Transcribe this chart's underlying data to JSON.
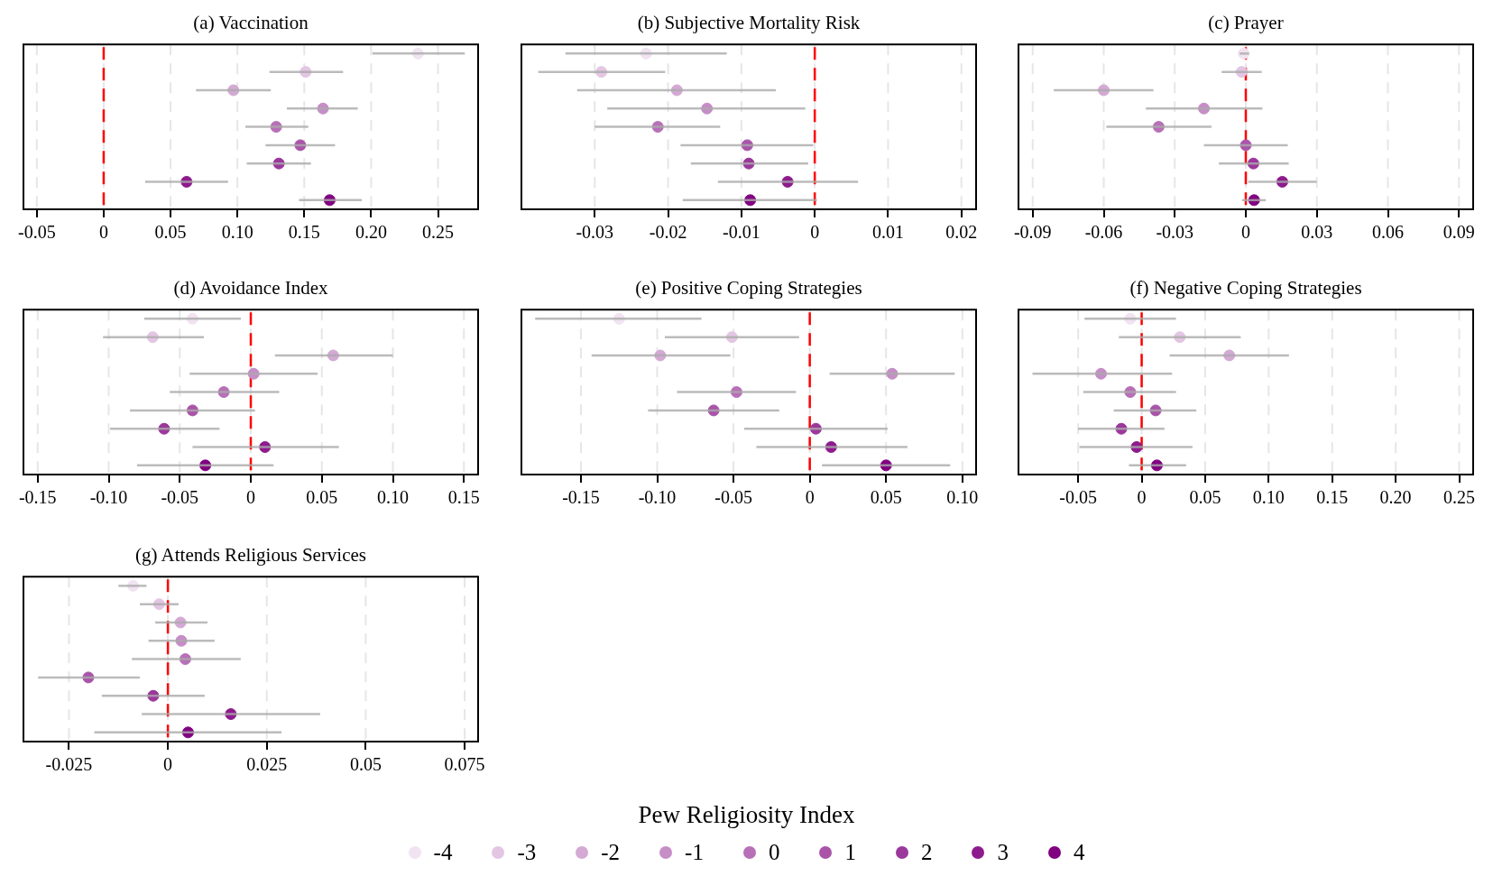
{
  "chart_data": [
    {
      "type": "scatter",
      "title": "(a) Vaccination",
      "orientation": "horizontal",
      "categories": [
        null,
        null,
        null,
        null,
        null,
        null,
        null,
        null,
        null
      ],
      "xlim": [
        -0.06,
        0.28
      ],
      "xticks": [
        -0.05,
        0,
        0.05,
        {
          "value": 0.1,
          "label": "0.10"
        },
        0.15,
        {
          "value": 0.2,
          "label": "0.20"
        },
        0.25
      ],
      "grid": "x",
      "tick_labels": "x",
      "marker": "circle",
      "ref_lines": [
        {
          "axis": "x",
          "value": 0,
          "color": "#ff0000",
          "line_style": "dashed"
        }
      ],
      "series": [
        {
          "color": "#f1e3f1",
          "values": [
            0.235,
            null,
            null,
            null,
            null,
            null,
            null,
            null,
            null
          ],
          "errors": [
            [
              0.201,
              0.27
            ],
            null,
            null,
            null,
            null,
            null,
            null,
            null,
            null
          ]
        },
        {
          "color": "#e3c6e3",
          "values": [
            null,
            0.151,
            null,
            null,
            null,
            null,
            null,
            null,
            null
          ],
          "errors": [
            null,
            [
              0.124,
              0.179
            ],
            null,
            null,
            null,
            null,
            null,
            null,
            null
          ]
        },
        {
          "color": "#d4a9d4",
          "values": [
            null,
            null,
            0.097,
            null,
            null,
            null,
            null,
            null,
            null
          ],
          "errors": [
            null,
            null,
            [
              0.069,
              0.125
            ],
            null,
            null,
            null,
            null,
            null,
            null
          ]
        },
        {
          "color": "#c68dc6",
          "values": [
            null,
            null,
            null,
            0.164,
            null,
            null,
            null,
            null,
            null
          ],
          "errors": [
            null,
            null,
            null,
            [
              0.137,
              0.19
            ],
            null,
            null,
            null,
            null,
            null
          ]
        },
        {
          "color": "#b770b7",
          "values": [
            null,
            null,
            null,
            null,
            0.129,
            null,
            null,
            null,
            null
          ],
          "errors": [
            null,
            null,
            null,
            null,
            [
              0.106,
              0.153
            ],
            null,
            null,
            null,
            null
          ]
        },
        {
          "color": "#a954a9",
          "values": [
            null,
            null,
            null,
            null,
            null,
            0.147,
            null,
            null,
            null
          ],
          "errors": [
            null,
            null,
            null,
            null,
            null,
            [
              0.121,
              0.173
            ],
            null,
            null,
            null
          ]
        },
        {
          "color": "#9b389b",
          "values": [
            null,
            null,
            null,
            null,
            null,
            null,
            0.131,
            null,
            null
          ],
          "errors": [
            null,
            null,
            null,
            null,
            null,
            null,
            [
              0.107,
              0.155
            ],
            null,
            null
          ]
        },
        {
          "color": "#8d1b8d",
          "values": [
            null,
            null,
            null,
            null,
            null,
            null,
            null,
            0.062,
            null
          ],
          "errors": [
            null,
            null,
            null,
            null,
            null,
            null,
            null,
            [
              0.031,
              0.093
            ],
            null
          ]
        },
        {
          "color": "#800080",
          "values": [
            null,
            null,
            null,
            null,
            null,
            null,
            null,
            null,
            0.169
          ],
          "errors": [
            null,
            null,
            null,
            null,
            null,
            null,
            null,
            null,
            [
              0.146,
              0.193
            ]
          ]
        }
      ]
    },
    {
      "type": "scatter",
      "title": "(b) Subjective Mortality Risk",
      "orientation": "horizontal",
      "categories": [
        null,
        null,
        null,
        null,
        null,
        null,
        null,
        null,
        null
      ],
      "xlim": [
        -0.04,
        0.022
      ],
      "xticks": [
        -0.03,
        -0.02,
        -0.01,
        0,
        0.01,
        0.02
      ],
      "grid": "x",
      "tick_labels": "x",
      "marker": "circle",
      "ref_lines": [
        {
          "axis": "x",
          "value": 0,
          "color": "#ff0000",
          "line_style": "dashed"
        }
      ],
      "series": [
        {
          "color": "#f1e3f1",
          "values": [
            -0.023,
            null,
            null,
            null,
            null,
            null,
            null,
            null,
            null
          ],
          "errors": [
            [
              -0.034,
              -0.012
            ],
            null,
            null,
            null,
            null,
            null,
            null,
            null,
            null
          ]
        },
        {
          "color": "#e3c6e3",
          "values": [
            null,
            -0.0291,
            null,
            null,
            null,
            null,
            null,
            null,
            null
          ],
          "errors": [
            null,
            [
              -0.0377,
              -0.0204
            ],
            null,
            null,
            null,
            null,
            null,
            null,
            null
          ]
        },
        {
          "color": "#d4a9d4",
          "values": [
            null,
            null,
            -0.0188,
            null,
            null,
            null,
            null,
            null,
            null
          ],
          "errors": [
            null,
            null,
            [
              -0.0324,
              -0.0053
            ],
            null,
            null,
            null,
            null,
            null,
            null
          ]
        },
        {
          "color": "#c68dc6",
          "values": [
            null,
            null,
            null,
            -0.0147,
            null,
            null,
            null,
            null,
            null
          ],
          "errors": [
            null,
            null,
            null,
            [
              -0.0283,
              -0.0013
            ],
            null,
            null,
            null,
            null,
            null
          ]
        },
        {
          "color": "#b770b7",
          "values": [
            null,
            null,
            null,
            null,
            -0.0214,
            null,
            null,
            null,
            null
          ],
          "errors": [
            null,
            null,
            null,
            null,
            [
              -0.03,
              -0.0129
            ],
            null,
            null,
            null,
            null
          ]
        },
        {
          "color": "#a954a9",
          "values": [
            null,
            null,
            null,
            null,
            null,
            -0.0092,
            null,
            null,
            null
          ],
          "errors": [
            null,
            null,
            null,
            null,
            null,
            [
              -0.0183,
              -0.0002
            ],
            null,
            null,
            null
          ]
        },
        {
          "color": "#9b389b",
          "values": [
            null,
            null,
            null,
            null,
            null,
            null,
            -0.009,
            null,
            null
          ],
          "errors": [
            null,
            null,
            null,
            null,
            null,
            null,
            [
              -0.0169,
              -0.0009
            ],
            null,
            null
          ]
        },
        {
          "color": "#8d1b8d",
          "values": [
            null,
            null,
            null,
            null,
            null,
            null,
            null,
            -0.0037,
            null
          ],
          "errors": [
            null,
            null,
            null,
            null,
            null,
            null,
            null,
            [
              -0.0132,
              0.0059
            ],
            null
          ]
        },
        {
          "color": "#800080",
          "values": [
            null,
            null,
            null,
            null,
            null,
            null,
            null,
            null,
            -0.0088
          ],
          "errors": [
            null,
            null,
            null,
            null,
            null,
            null,
            null,
            null,
            [
              -0.018,
              0.0003
            ]
          ]
        }
      ]
    },
    {
      "type": "scatter",
      "title": "(c) Prayer",
      "orientation": "horizontal",
      "categories": [
        null,
        null,
        null,
        null,
        null,
        null,
        null,
        null,
        null
      ],
      "xlim": [
        -0.096,
        0.096
      ],
      "xticks": [
        -0.09,
        -0.06,
        -0.03,
        0,
        0.03,
        0.06,
        0.09
      ],
      "grid": "x",
      "tick_labels": "x",
      "marker": "circle",
      "ref_lines": [
        {
          "axis": "x",
          "value": 0,
          "color": "#ff0000",
          "line_style": "dashed"
        }
      ],
      "series": [
        {
          "color": "#f1e3f1",
          "values": [
            -0.0009,
            null,
            null,
            null,
            null,
            null,
            null,
            null,
            null
          ],
          "errors": [
            [
              -0.0026,
              0.0014
            ],
            null,
            null,
            null,
            null,
            null,
            null,
            null,
            null
          ]
        },
        {
          "color": "#e3c6e3",
          "values": [
            null,
            -0.0018,
            null,
            null,
            null,
            null,
            null,
            null,
            null
          ],
          "errors": [
            null,
            [
              -0.0102,
              0.0067
            ],
            null,
            null,
            null,
            null,
            null,
            null,
            null
          ]
        },
        {
          "color": "#d4a9d4",
          "values": [
            null,
            null,
            -0.06,
            null,
            null,
            null,
            null,
            null,
            null
          ],
          "errors": [
            null,
            null,
            [
              -0.0811,
              -0.039
            ],
            null,
            null,
            null,
            null,
            null,
            null
          ]
        },
        {
          "color": "#c68dc6",
          "values": [
            null,
            null,
            null,
            -0.0177,
            null,
            null,
            null,
            null,
            null
          ],
          "errors": [
            null,
            null,
            null,
            [
              -0.0422,
              0.007
            ],
            null,
            null,
            null,
            null,
            null
          ]
        },
        {
          "color": "#b770b7",
          "values": [
            null,
            null,
            null,
            null,
            -0.0368,
            null,
            null,
            null,
            null
          ],
          "errors": [
            null,
            null,
            null,
            null,
            [
              -0.0589,
              -0.0145
            ],
            null,
            null,
            null,
            null
          ]
        },
        {
          "color": "#a954a9",
          "values": [
            null,
            null,
            null,
            null,
            null,
            0,
            null,
            null,
            null
          ],
          "errors": [
            null,
            null,
            null,
            null,
            null,
            [
              -0.0177,
              0.0177
            ],
            null,
            null,
            null
          ]
        },
        {
          "color": "#9b389b",
          "values": [
            null,
            null,
            null,
            null,
            null,
            null,
            0.0032,
            null,
            null
          ],
          "errors": [
            null,
            null,
            null,
            null,
            null,
            null,
            [
              -0.0114,
              0.0181
            ],
            null,
            null
          ]
        },
        {
          "color": "#8d1b8d",
          "values": [
            null,
            null,
            null,
            null,
            null,
            null,
            null,
            0.0154,
            null
          ],
          "errors": [
            null,
            null,
            null,
            null,
            null,
            null,
            null,
            [
              0.001,
              0.0299
            ],
            null
          ]
        },
        {
          "color": "#800080",
          "values": [
            null,
            null,
            null,
            null,
            null,
            null,
            null,
            null,
            0.0035
          ],
          "errors": [
            null,
            null,
            null,
            null,
            null,
            null,
            null,
            null,
            [
              -0.0016,
              0.0084
            ]
          ]
        }
      ]
    },
    {
      "type": "scatter",
      "title": "(d) Avoidance Index",
      "orientation": "horizontal",
      "categories": [
        null,
        null,
        null,
        null,
        null,
        null,
        null,
        null,
        null
      ],
      "xlim": [
        -0.16,
        0.16
      ],
      "xticks": [
        -0.15,
        {
          "value": -0.1,
          "label": "-0.10"
        },
        -0.05,
        0,
        0.05,
        {
          "value": 0.1,
          "label": "0.10"
        },
        0.15
      ],
      "grid": "x",
      "tick_labels": "x",
      "marker": "circle",
      "ref_lines": [
        {
          "axis": "x",
          "value": 0,
          "color": "#ff0000",
          "line_style": "dashed"
        }
      ],
      "series": [
        {
          "color": "#f1e3f1",
          "values": [
            -0.041,
            null,
            null,
            null,
            null,
            null,
            null,
            null,
            null
          ],
          "errors": [
            [
              -0.075,
              -0.007
            ],
            null,
            null,
            null,
            null,
            null,
            null,
            null,
            null
          ]
        },
        {
          "color": "#e3c6e3",
          "values": [
            null,
            -0.069,
            null,
            null,
            null,
            null,
            null,
            null,
            null
          ],
          "errors": [
            null,
            [
              -0.104,
              -0.033
            ],
            null,
            null,
            null,
            null,
            null,
            null,
            null
          ]
        },
        {
          "color": "#d4a9d4",
          "values": [
            null,
            null,
            0.058,
            null,
            null,
            null,
            null,
            null,
            null
          ],
          "errors": [
            null,
            null,
            [
              0.017,
              0.1
            ],
            null,
            null,
            null,
            null,
            null,
            null
          ]
        },
        {
          "color": "#c68dc6",
          "values": [
            null,
            null,
            null,
            0.002,
            null,
            null,
            null,
            null,
            null
          ],
          "errors": [
            null,
            null,
            null,
            [
              -0.043,
              0.047
            ],
            null,
            null,
            null,
            null,
            null
          ]
        },
        {
          "color": "#b770b7",
          "values": [
            null,
            null,
            null,
            null,
            -0.019,
            null,
            null,
            null,
            null
          ],
          "errors": [
            null,
            null,
            null,
            null,
            [
              -0.057,
              0.02
            ],
            null,
            null,
            null,
            null
          ]
        },
        {
          "color": "#a954a9",
          "values": [
            null,
            null,
            null,
            null,
            null,
            -0.041,
            null,
            null,
            null
          ],
          "errors": [
            null,
            null,
            null,
            null,
            null,
            [
              -0.085,
              0.003
            ],
            null,
            null,
            null
          ]
        },
        {
          "color": "#9b389b",
          "values": [
            null,
            null,
            null,
            null,
            null,
            null,
            -0.061,
            null,
            null
          ],
          "errors": [
            null,
            null,
            null,
            null,
            null,
            null,
            [
              -0.099,
              -0.022
            ],
            null,
            null
          ]
        },
        {
          "color": "#8d1b8d",
          "values": [
            null,
            null,
            null,
            null,
            null,
            null,
            null,
            0.01,
            null
          ],
          "errors": [
            null,
            null,
            null,
            null,
            null,
            null,
            null,
            [
              -0.041,
              0.062
            ],
            null
          ]
        },
        {
          "color": "#800080",
          "values": [
            null,
            null,
            null,
            null,
            null,
            null,
            null,
            null,
            -0.032
          ],
          "errors": [
            null,
            null,
            null,
            null,
            null,
            null,
            null,
            null,
            [
              -0.08,
              0.016
            ]
          ]
        }
      ]
    },
    {
      "type": "scatter",
      "title": "(e) Positive Coping Strategies",
      "orientation": "horizontal",
      "categories": [
        null,
        null,
        null,
        null,
        null,
        null,
        null,
        null,
        null
      ],
      "xlim": [
        -0.189,
        0.109
      ],
      "xticks": [
        -0.15,
        {
          "value": -0.1,
          "label": "-0.10"
        },
        -0.05,
        0,
        0.05,
        {
          "value": 0.1,
          "label": "0.10"
        }
      ],
      "grid": "x",
      "tick_labels": "x",
      "marker": "circle",
      "ref_lines": [
        {
          "axis": "x",
          "value": 0,
          "color": "#ff0000",
          "line_style": "dashed"
        }
      ],
      "series": [
        {
          "color": "#f1e3f1",
          "values": [
            -0.125,
            null,
            null,
            null,
            null,
            null,
            null,
            null,
            null
          ],
          "errors": [
            [
              -0.18,
              -0.071
            ],
            null,
            null,
            null,
            null,
            null,
            null,
            null,
            null
          ]
        },
        {
          "color": "#e3c6e3",
          "values": [
            null,
            -0.051,
            null,
            null,
            null,
            null,
            null,
            null,
            null
          ],
          "errors": [
            null,
            [
              -0.095,
              -0.007
            ],
            null,
            null,
            null,
            null,
            null,
            null,
            null
          ]
        },
        {
          "color": "#d4a9d4",
          "values": [
            null,
            null,
            -0.098,
            null,
            null,
            null,
            null,
            null,
            null
          ],
          "errors": [
            null,
            null,
            [
              -0.143,
              -0.052
            ],
            null,
            null,
            null,
            null,
            null,
            null
          ]
        },
        {
          "color": "#c68dc6",
          "values": [
            null,
            null,
            null,
            0.054,
            null,
            null,
            null,
            null,
            null
          ],
          "errors": [
            null,
            null,
            null,
            [
              0.013,
              0.095
            ],
            null,
            null,
            null,
            null,
            null
          ]
        },
        {
          "color": "#b770b7",
          "values": [
            null,
            null,
            null,
            null,
            -0.048,
            null,
            null,
            null,
            null
          ],
          "errors": [
            null,
            null,
            null,
            null,
            [
              -0.087,
              -0.009
            ],
            null,
            null,
            null,
            null
          ]
        },
        {
          "color": "#a954a9",
          "values": [
            null,
            null,
            null,
            null,
            null,
            -0.063,
            null,
            null,
            null
          ],
          "errors": [
            null,
            null,
            null,
            null,
            null,
            [
              -0.106,
              -0.02
            ],
            null,
            null,
            null
          ]
        },
        {
          "color": "#9b389b",
          "values": [
            null,
            null,
            null,
            null,
            null,
            null,
            0.004,
            null,
            null
          ],
          "errors": [
            null,
            null,
            null,
            null,
            null,
            null,
            [
              -0.043,
              0.051
            ],
            null,
            null
          ]
        },
        {
          "color": "#8d1b8d",
          "values": [
            null,
            null,
            null,
            null,
            null,
            null,
            null,
            0.014,
            null
          ],
          "errors": [
            null,
            null,
            null,
            null,
            null,
            null,
            null,
            [
              -0.035,
              0.064
            ],
            null
          ]
        },
        {
          "color": "#800080",
          "values": [
            null,
            null,
            null,
            null,
            null,
            null,
            null,
            null,
            0.05
          ],
          "errors": [
            null,
            null,
            null,
            null,
            null,
            null,
            null,
            null,
            [
              0.008,
              0.092
            ]
          ]
        }
      ]
    },
    {
      "type": "scatter",
      "title": "(f) Negative Coping Strategies",
      "orientation": "horizontal",
      "categories": [
        null,
        null,
        null,
        null,
        null,
        null,
        null,
        null,
        null
      ],
      "xlim": [
        -0.097,
        0.261
      ],
      "xticks": [
        -0.05,
        0,
        0.05,
        {
          "value": 0.1,
          "label": "0.10"
        },
        0.15,
        {
          "value": 0.2,
          "label": "0.20"
        },
        0.25
      ],
      "grid": "x",
      "tick_labels": "x",
      "marker": "circle",
      "ref_lines": [
        {
          "axis": "x",
          "value": 0,
          "color": "#ff0000",
          "line_style": "dashed"
        }
      ],
      "series": [
        {
          "color": "#f1e3f1",
          "values": [
            -0.009,
            null,
            null,
            null,
            null,
            null,
            null,
            null,
            null
          ],
          "errors": [
            [
              -0.045,
              0.027
            ],
            null,
            null,
            null,
            null,
            null,
            null,
            null,
            null
          ]
        },
        {
          "color": "#e3c6e3",
          "values": [
            null,
            0.03,
            null,
            null,
            null,
            null,
            null,
            null,
            null
          ],
          "errors": [
            null,
            [
              -0.018,
              0.078
            ],
            null,
            null,
            null,
            null,
            null,
            null,
            null
          ]
        },
        {
          "color": "#d4a9d4",
          "values": [
            null,
            null,
            0.069,
            null,
            null,
            null,
            null,
            null,
            null
          ],
          "errors": [
            null,
            null,
            [
              0.022,
              0.116
            ],
            null,
            null,
            null,
            null,
            null,
            null
          ]
        },
        {
          "color": "#c68dc6",
          "values": [
            null,
            null,
            null,
            -0.032,
            null,
            null,
            null,
            null,
            null
          ],
          "errors": [
            null,
            null,
            null,
            [
              -0.086,
              0.024
            ],
            null,
            null,
            null,
            null,
            null
          ]
        },
        {
          "color": "#b770b7",
          "values": [
            null,
            null,
            null,
            null,
            -0.009,
            null,
            null,
            null,
            null
          ],
          "errors": [
            null,
            null,
            null,
            null,
            [
              -0.046,
              0.027
            ],
            null,
            null,
            null,
            null
          ]
        },
        {
          "color": "#a954a9",
          "values": [
            null,
            null,
            null,
            null,
            null,
            0.011,
            null,
            null,
            null
          ],
          "errors": [
            null,
            null,
            null,
            null,
            null,
            [
              -0.022,
              0.043
            ],
            null,
            null,
            null
          ]
        },
        {
          "color": "#9b389b",
          "values": [
            null,
            null,
            null,
            null,
            null,
            null,
            -0.016,
            null,
            null
          ],
          "errors": [
            null,
            null,
            null,
            null,
            null,
            null,
            [
              -0.05,
              0.018
            ],
            null,
            null
          ]
        },
        {
          "color": "#8d1b8d",
          "values": [
            null,
            null,
            null,
            null,
            null,
            null,
            null,
            -0.004,
            null
          ],
          "errors": [
            null,
            null,
            null,
            null,
            null,
            null,
            null,
            [
              -0.049,
              0.04
            ],
            null
          ]
        },
        {
          "color": "#800080",
          "values": [
            null,
            null,
            null,
            null,
            null,
            null,
            null,
            null,
            0.012
          ],
          "errors": [
            null,
            null,
            null,
            null,
            null,
            null,
            null,
            null,
            [
              -0.01,
              0.035
            ]
          ]
        }
      ]
    },
    {
      "type": "scatter",
      "title": "(g) Attends Religious Services",
      "orientation": "horizontal",
      "categories": [
        null,
        null,
        null,
        null,
        null,
        null,
        null,
        null,
        null
      ],
      "xlim": [
        -0.0365,
        0.0784
      ],
      "xticks": [
        -0.025,
        0,
        0.025,
        0.05,
        0.075
      ],
      "grid": "x",
      "tick_labels": "x",
      "marker": "circle",
      "legend": "bottom",
      "legend_title": "Pew Religiosity Index",
      "ref_lines": [
        {
          "axis": "x",
          "value": 0,
          "color": "#ff0000",
          "line_style": "dashed"
        }
      ],
      "series": [
        {
          "name": "-4",
          "color": "#f1e3f1",
          "values": [
            -0.0088,
            null,
            null,
            null,
            null,
            null,
            null,
            null,
            null
          ],
          "errors": [
            [
              -0.0125,
              -0.0054
            ],
            null,
            null,
            null,
            null,
            null,
            null,
            null,
            null
          ]
        },
        {
          "name": "-3",
          "color": "#e3c6e3",
          "values": [
            null,
            -0.0022,
            null,
            null,
            null,
            null,
            null,
            null,
            null
          ],
          "errors": [
            null,
            [
              -0.0071,
              0.0027
            ],
            null,
            null,
            null,
            null,
            null,
            null,
            null
          ]
        },
        {
          "name": "-2",
          "color": "#d4a9d4",
          "values": [
            null,
            null,
            0.0032,
            null,
            null,
            null,
            null,
            null,
            null
          ],
          "errors": [
            null,
            null,
            [
              -0.0032,
              0.01
            ],
            null,
            null,
            null,
            null,
            null,
            null
          ]
        },
        {
          "name": "-1",
          "color": "#c68dc6",
          "values": [
            null,
            null,
            null,
            0.0034,
            null,
            null,
            null,
            null,
            null
          ],
          "errors": [
            null,
            null,
            null,
            [
              -0.0049,
              0.0118
            ],
            null,
            null,
            null,
            null,
            null
          ]
        },
        {
          "name": "0",
          "color": "#b770b7",
          "values": [
            null,
            null,
            null,
            null,
            0.0044,
            null,
            null,
            null,
            null
          ],
          "errors": [
            null,
            null,
            null,
            null,
            [
              -0.0091,
              0.0184
            ],
            null,
            null,
            null,
            null
          ]
        },
        {
          "name": "1",
          "color": "#a954a9",
          "values": [
            null,
            null,
            null,
            null,
            null,
            -0.0201,
            null,
            null,
            null
          ],
          "errors": [
            null,
            null,
            null,
            null,
            null,
            [
              -0.0328,
              -0.0071
            ],
            null,
            null,
            null
          ]
        },
        {
          "name": "2",
          "color": "#9b389b",
          "values": [
            null,
            null,
            null,
            null,
            null,
            null,
            -0.0037,
            null,
            null
          ],
          "errors": [
            null,
            null,
            null,
            null,
            null,
            null,
            [
              -0.0167,
              0.0093
            ],
            null,
            null
          ]
        },
        {
          "name": "3",
          "color": "#8d1b8d",
          "values": [
            null,
            null,
            null,
            null,
            null,
            null,
            null,
            0.0159,
            null
          ],
          "errors": [
            null,
            null,
            null,
            null,
            null,
            null,
            null,
            [
              -0.0066,
              0.0385
            ],
            null
          ]
        },
        {
          "name": "4",
          "color": "#800080",
          "values": [
            null,
            null,
            null,
            null,
            null,
            null,
            null,
            null,
            0.0051
          ],
          "errors": [
            null,
            null,
            null,
            null,
            null,
            null,
            null,
            null,
            [
              -0.0186,
              0.0287
            ]
          ]
        }
      ]
    }
  ]
}
